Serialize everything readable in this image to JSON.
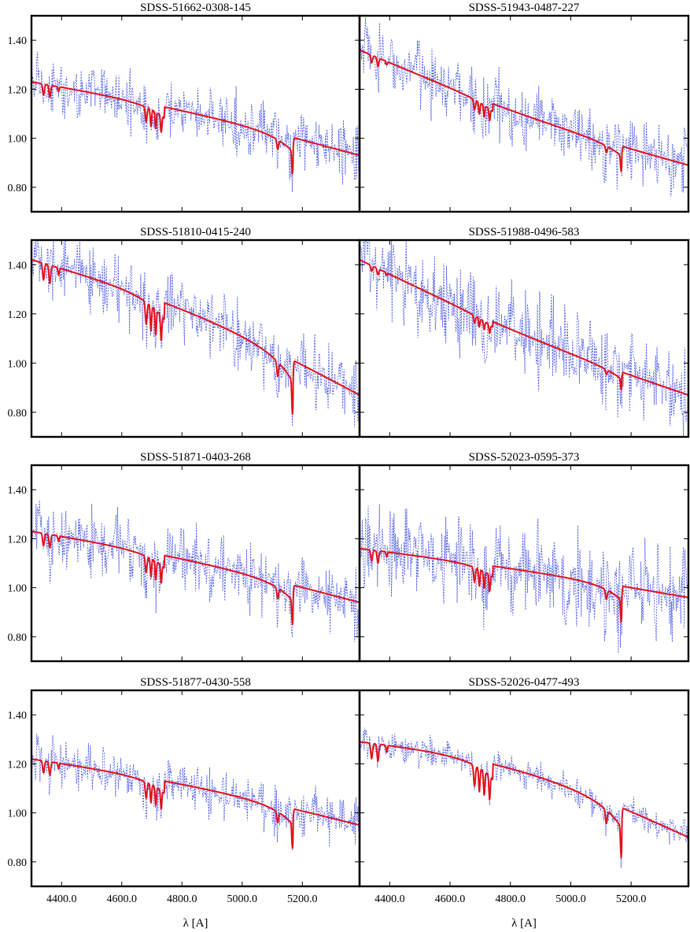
{
  "figure": {
    "xlabel": "λ [A]",
    "colors": {
      "observed": "#2f3fe6",
      "model": "#e3101a",
      "frame": "#000000"
    }
  },
  "chart_data": {
    "type": "line",
    "rows": 4,
    "cols": 2,
    "xlim": [
      4300,
      5390
    ],
    "ylim": [
      0.7,
      1.5
    ],
    "xticks": [
      4400,
      4600,
      4800,
      5000,
      5200
    ],
    "xtick_labels": [
      "4400.0",
      "4600.0",
      "4800.0",
      "5000.0",
      "5200.0"
    ],
    "yticks": [
      0.8,
      1.0,
      1.2,
      1.4
    ],
    "ytick_labels": [
      "0.80",
      "1.00",
      "1.20",
      "1.40"
    ],
    "series_styles": {
      "observed": "dotted blue",
      "model": "solid red"
    },
    "panels": [
      {
        "title": "SDSS-51662-0308-145",
        "model": {
          "start": 1.23,
          "end": 0.93,
          "curve": 0.02,
          "amp": 1.0,
          "noise": 0.14
        }
      },
      {
        "title": "SDSS-51943-0487-227",
        "model": {
          "start": 1.36,
          "end": 0.89,
          "curve": -0.03,
          "amp": 0.7,
          "noise": 0.17
        }
      },
      {
        "title": "SDSS-51810-0415-240",
        "model": {
          "start": 1.42,
          "end": 0.87,
          "curve": 0.05,
          "amp": 1.5,
          "noise": 0.16
        }
      },
      {
        "title": "SDSS-51988-0496-583",
        "model": {
          "start": 1.42,
          "end": 0.87,
          "curve": -0.03,
          "amp": 0.5,
          "noise": 0.22
        }
      },
      {
        "title": "SDSS-51871-0403-268",
        "model": {
          "start": 1.23,
          "end": 0.94,
          "curve": 0.02,
          "amp": 1.1,
          "noise": 0.16
        }
      },
      {
        "title": "SDSS-52023-0595-373",
        "model": {
          "start": 1.16,
          "end": 0.96,
          "curve": 0.01,
          "amp": 1.0,
          "noise": 0.22
        }
      },
      {
        "title": "SDSS-51877-0430-558",
        "model": {
          "start": 1.22,
          "end": 0.95,
          "curve": 0.02,
          "amp": 1.1,
          "noise": 0.12
        }
      },
      {
        "title": "SDSS-52026-0477-493",
        "model": {
          "start": 1.29,
          "end": 0.9,
          "curve": 0.07,
          "amp": 1.4,
          "noise": 0.07
        }
      }
    ]
  }
}
